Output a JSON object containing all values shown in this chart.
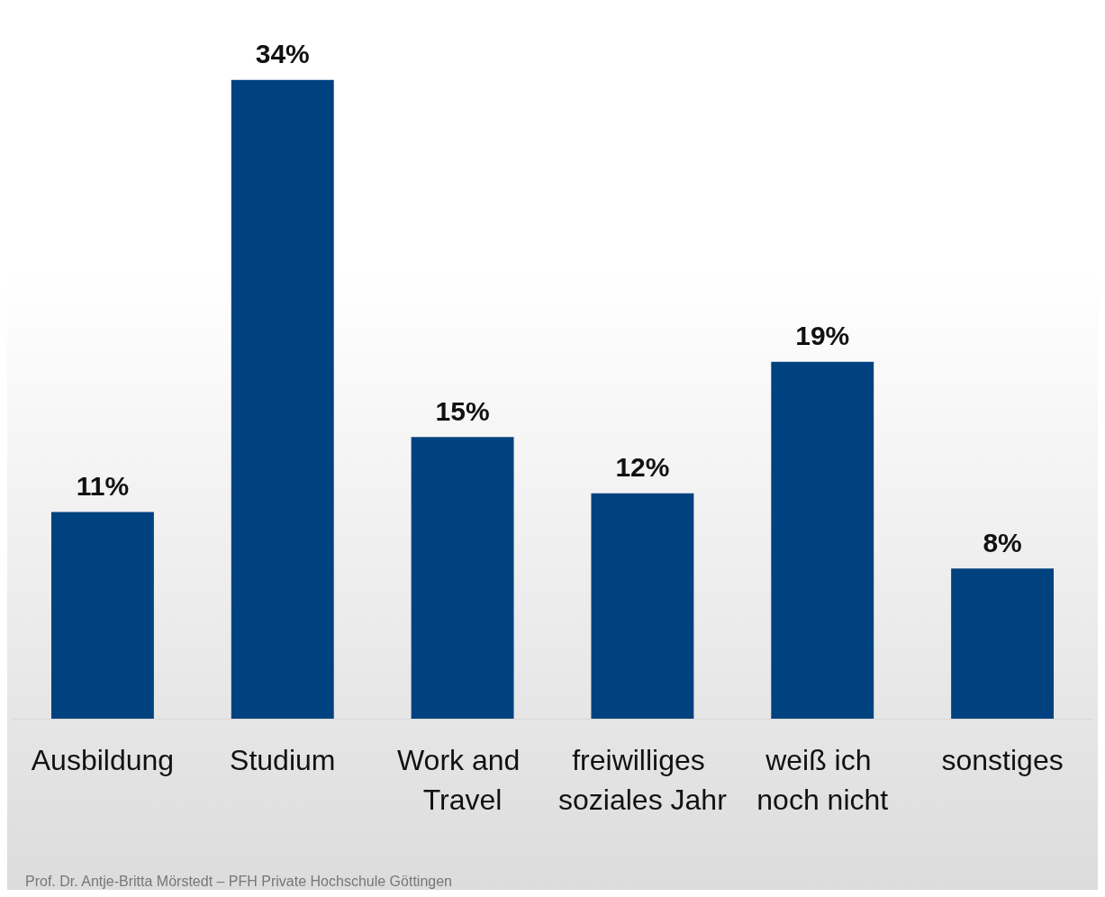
{
  "chart_data": {
    "type": "bar",
    "categories": [
      "Ausbildung",
      "Studium",
      "Work and Travel",
      "freiwilliges soziales Jahr",
      "weiß ich noch nicht",
      "sonstiges"
    ],
    "values": [
      11,
      34,
      15,
      12,
      19,
      8
    ],
    "value_labels": [
      "11%",
      "34%",
      "15%",
      "12%",
      "19%",
      "8%"
    ],
    "color": "#00427f",
    "grid": false,
    "annotations": [
      "Prof. Dr. Antje-Britta Mörstedt – PFH Private Hochschule Göttingen"
    ]
  }
}
